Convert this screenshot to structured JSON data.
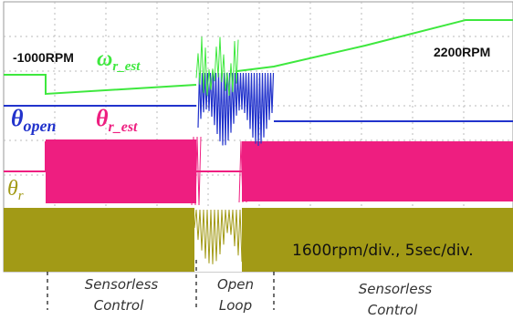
{
  "annotations": {
    "left_speed": "-1000RPM",
    "right_speed": "2200RPM",
    "scale": "1600rpm/div., 5sec/div."
  },
  "signals": {
    "speed_est": {
      "symbol": "ω",
      "subscript": "r_est"
    },
    "theta_open": {
      "symbol": "θ",
      "subscript": "open"
    },
    "theta_est": {
      "symbol": "θ",
      "subscript": "r_est"
    },
    "theta_r": {
      "symbol": "θ",
      "subscript": "r"
    }
  },
  "phases": [
    {
      "lines": [
        "Sensorless",
        "Control"
      ]
    },
    {
      "lines": [
        "Open",
        "Loop"
      ]
    },
    {
      "lines": [
        "Sensorless",
        "Control"
      ]
    }
  ]
}
